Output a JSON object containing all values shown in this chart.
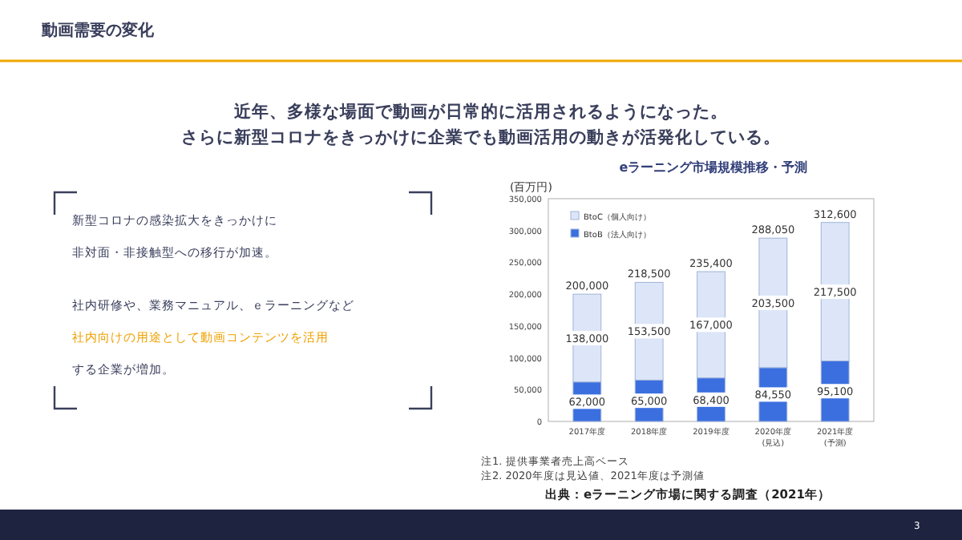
{
  "chart_data": {
    "type": "bar",
    "title": "eラーニング市場規模推移・予測",
    "ylabel": "(百万円)",
    "categories": [
      "2017年度",
      "2018年度",
      "2019年度",
      "2020年度\n(見込)",
      "2021年度\n(予測)"
    ],
    "stacked": true,
    "series": [
      {
        "name": "BtoB（法人向け）",
        "color": "#3b6fe0",
        "values": [
          62000,
          65000,
          68400,
          84550,
          95100
        ],
        "value_labels": [
          "62,000",
          "65,000",
          "68,400",
          "84,550",
          "95,100"
        ]
      },
      {
        "name": "BtoC（個人向け）",
        "color": "#dde6f8",
        "values": [
          138000,
          153500,
          167000,
          203500,
          217500
        ],
        "value_labels": [
          "138,000",
          "153,500",
          "167,000",
          "203,500",
          "217,500"
        ]
      }
    ],
    "totals": [
      "200,000",
      "218,500",
      "235,400",
      "288,050",
      "312,600"
    ],
    "ylim": [
      0,
      350000
    ],
    "yticks": [
      0,
      {
        "value": 50000,
        "label": "50,000"
      },
      {
        "value": 100000,
        "label": "100,000"
      },
      {
        "value": 150000,
        "label": "150,000"
      },
      {
        "value": 200000,
        "label": "200,000"
      },
      {
        "value": 250000,
        "label": "250,000"
      },
      {
        "value": 300000,
        "label": "300,000"
      },
      {
        "value": 350000,
        "label": "350,000"
      }
    ],
    "grid": false,
    "legend": "top left",
    "annotations": [
      "動画需要の変化",
      "近年、多様な場面で動画が日常的に活用されるようになった。",
      "さらに新型コロナをきっかけに企業でも動画活用の動きが活発化している。",
      "新型コロナの感染拡大をきっかけに",
      "非対面・非接触型への移行が加速。",
      "社内研修や、業務マニュアル、ｅラーニングなど",
      "社内向けの用途として動画コンテンツを活用",
      "する企業が増加。",
      "注1. 提供事業者売上高ベース",
      "注2. 2020年度は見込値、2021年度は予測値",
      "出典：eラーニング市場に関する調査（2021年）",
      "3"
    ]
  }
}
